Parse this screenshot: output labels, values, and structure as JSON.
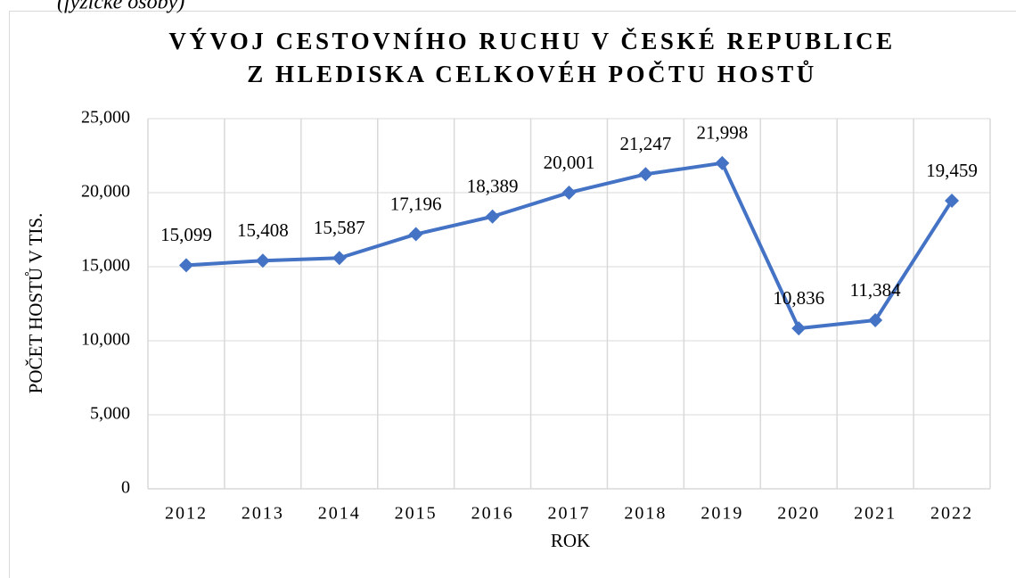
{
  "caption": "(fyzické osoby)",
  "chart_data": {
    "type": "line",
    "title": [
      "VÝVOJ CESTOVNÍHO RUCHU V ČESKÉ REPUBLICE",
      "Z HLEDISKA CELKOVÉH POČTU HOSTŮ"
    ],
    "x_label": "ROK",
    "y_label": "POČET HOSTŮ V TIS.",
    "categories": [
      "2012",
      "2013",
      "2014",
      "2015",
      "2016",
      "2017",
      "2018",
      "2019",
      "2020",
      "2021",
      "2022"
    ],
    "series": [
      {
        "name": "Počet hostů",
        "color": "#4472c4",
        "values": [
          15099,
          15408,
          15587,
          17196,
          18389,
          20001,
          21247,
          21998,
          10836,
          11384,
          19459
        ],
        "value_labels": [
          "15,099",
          "15,408",
          "15,587",
          "17,196",
          "18,389",
          "20,001",
          "21,247",
          "21,998",
          "10,836",
          "11,384",
          "19,459"
        ]
      }
    ],
    "ylim": [
      0,
      25000
    ],
    "yticks": [
      0,
      {
        "value": 5000,
        "label": "5,000"
      },
      {
        "value": 10000,
        "label": "10,000"
      },
      {
        "value": 15000,
        "label": "15,000"
      },
      {
        "value": 20000,
        "label": "20,000"
      },
      {
        "value": 25000,
        "label": "25,000"
      }
    ],
    "grid": true
  }
}
